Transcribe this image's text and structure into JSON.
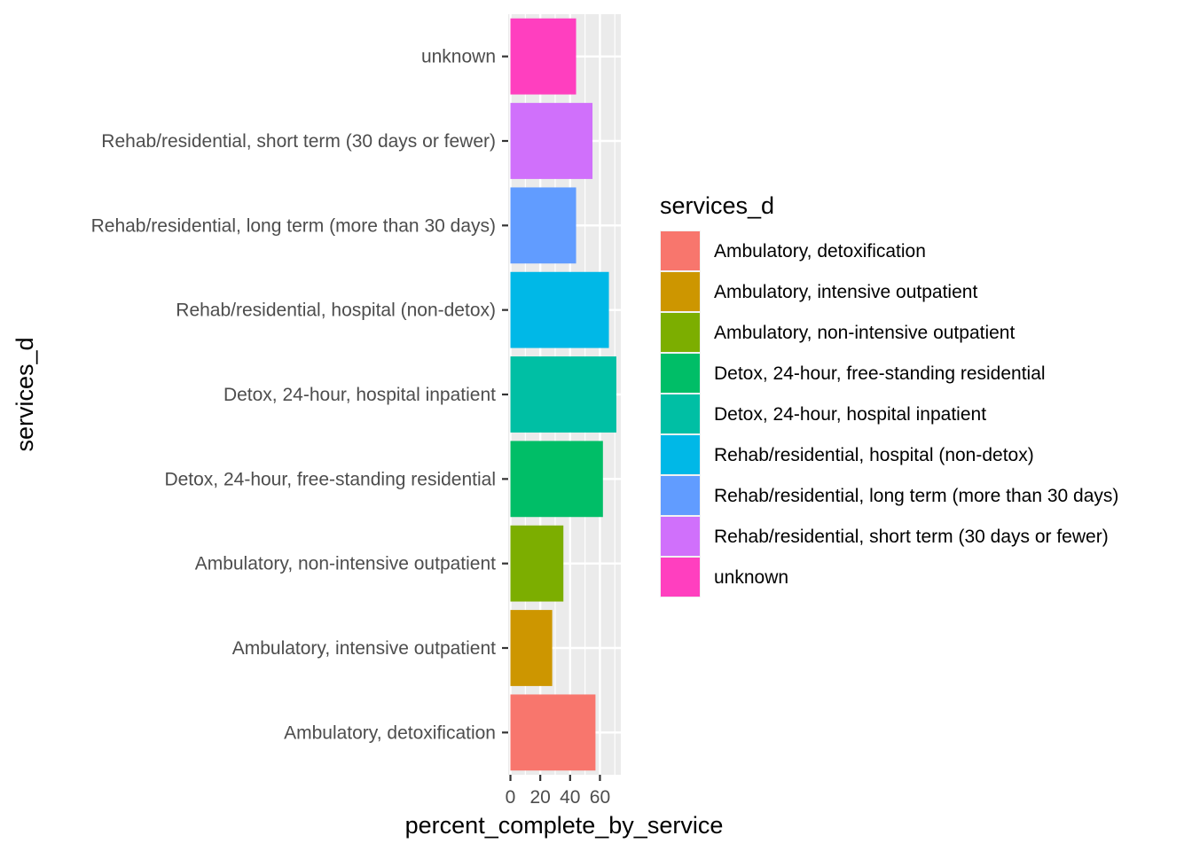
{
  "chart_data": {
    "type": "bar",
    "orientation": "horizontal",
    "xlabel": "percent_complete_by_service",
    "ylabel": "services_d",
    "xlim": [
      -1.5,
      74
    ],
    "x_ticks": [
      0,
      20,
      40,
      60
    ],
    "grid": true,
    "legend": {
      "title": "services_d",
      "position": "right"
    },
    "categories": [
      "Ambulatory, detoxification",
      "Ambulatory, intensive outpatient",
      "Ambulatory, non-intensive outpatient",
      "Detox, 24-hour, free-standing residential",
      "Detox, 24-hour, hospital inpatient",
      "Rehab/residential, hospital (non-detox)",
      "Rehab/residential, long term (more than 30 days)",
      "Rehab/residential, short term (30 days or fewer)",
      "unknown"
    ],
    "values": [
      57,
      28,
      35.5,
      62,
      71,
      66,
      44,
      55,
      44
    ],
    "colors": [
      "#F8766D",
      "#CD9600",
      "#7CAE00",
      "#00BE67",
      "#00BFA4",
      "#00B8E7",
      "#619CFF",
      "#D070FB",
      "#FF3FBF"
    ]
  }
}
